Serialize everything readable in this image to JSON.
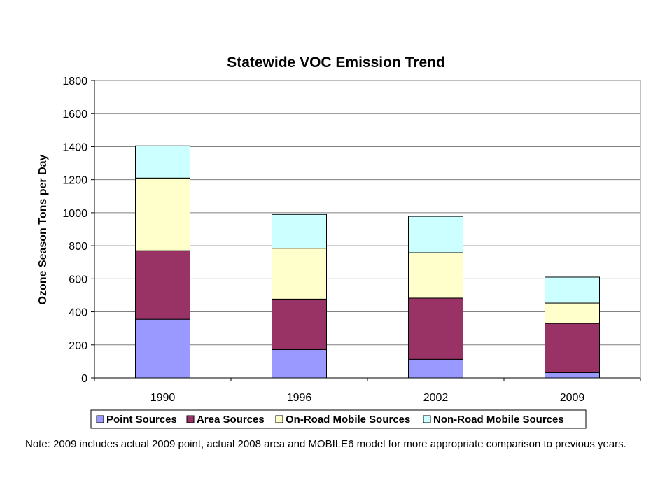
{
  "chart_data": {
    "type": "bar",
    "stacked": true,
    "title": "Statewide VOC Emission Trend",
    "xlabel": "",
    "ylabel": "Ozone Season Tons per Day",
    "categories": [
      "1990",
      "1996",
      "2002",
      "2009"
    ],
    "ylim": [
      0,
      1800
    ],
    "yticks": [
      0,
      200,
      400,
      600,
      800,
      1000,
      1200,
      1400,
      1600,
      1800
    ],
    "grid": true,
    "legend_position": "bottom",
    "series": [
      {
        "name": "Point Sources",
        "color": "#9999ff",
        "values": [
          355,
          172,
          113,
          32
        ]
      },
      {
        "name": "Area Sources",
        "color": "#993366",
        "values": [
          415,
          305,
          370,
          298
        ]
      },
      {
        "name": "On-Road Mobile Sources",
        "color": "#ffffcc",
        "values": [
          440,
          308,
          275,
          123
        ]
      },
      {
        "name": "Non-Road Mobile Sources",
        "color": "#ccffff",
        "values": [
          195,
          205,
          220,
          157
        ]
      }
    ]
  },
  "note": "Note:  2009  includes actual 2009 point, actual 2008 area and  MOBILE6 model for more appropriate comparison to previous years."
}
